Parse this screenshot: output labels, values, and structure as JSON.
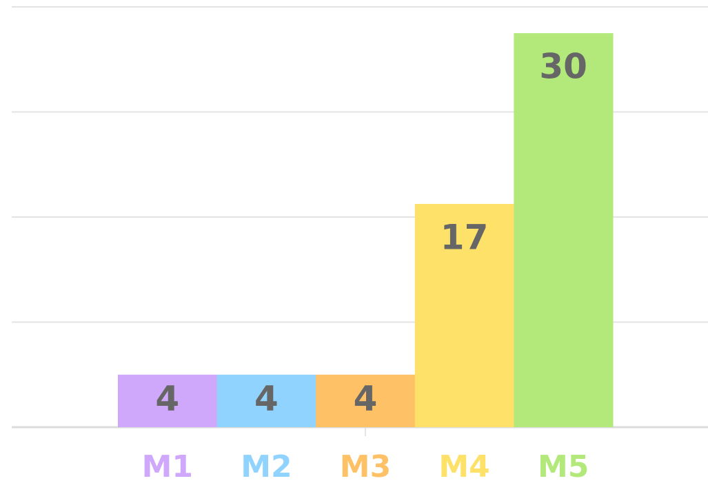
{
  "chart_data": {
    "type": "bar",
    "categories": [
      "M1",
      "M2",
      "M3",
      "M4",
      "M5"
    ],
    "values": [
      4,
      4,
      4,
      17,
      30
    ],
    "colors": [
      "#cfa8fc",
      "#8fd3fe",
      "#fec165",
      "#fee168",
      "#b2e97a"
    ],
    "ylim": [
      0,
      32
    ],
    "yticks": [
      0,
      8,
      16,
      24,
      32
    ],
    "grid": true
  }
}
